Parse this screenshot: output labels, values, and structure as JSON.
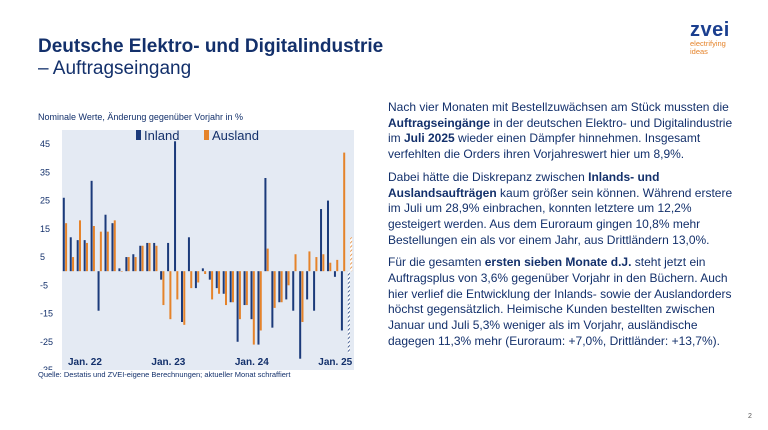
{
  "header": {
    "title": "Deutsche Elektro- und Digitalindustrie",
    "subtitle": "– Auftragseingang"
  },
  "logo": {
    "word": "zvei",
    "tagline_1": "electrifying",
    "tagline_2": "ideas"
  },
  "chart_note": "Nominale Werte, Änderung gegenüber Vorjahr in %",
  "source": "Quelle: Destatis und ZVEI-eigene Berechnungen; aktueller Monat schraffiert",
  "paragraphs": [
    [
      {
        "t": "Nach vier Monaten mit Bestellzuwächsen am Stück mussten die "
      },
      {
        "t": "Auftragseingänge",
        "b": true
      },
      {
        "t": " in der deutschen Elektro- und Digitalindustrie im "
      },
      {
        "t": "Juli 2025",
        "b": true
      },
      {
        "t": " wieder einen Dämpfer hinnehmen. Insgesamt verfehlten die Orders ihren Vorjahreswert hier um 8,9%."
      }
    ],
    [
      {
        "t": "Dabei hätte die Diskrepanz zwischen "
      },
      {
        "t": "Inlands- und Auslandsaufträgen",
        "b": true
      },
      {
        "t": " kaum größer sein können. Während erstere im Juli um 28,9% einbrachen, konnten letztere um 12,2% gesteigert werden. Aus dem Euroraum gingen 10,8% mehr Bestellungen ein als vor einem Jahr, aus Drittländern 13,0%."
      }
    ],
    [
      {
        "t": "Für die gesamten "
      },
      {
        "t": "ersten sieben Monate d.J.",
        "b": true
      },
      {
        "t": " steht jetzt ein Auftragsplus von 3,6% gegenüber Vorjahr in den Büchern. Auch hier verlief die Entwicklung der Inlands- sowie der Auslandorders höchst gegensätzlich. Heimische Kunden bestellten zwischen Januar und Juli 5,3% weniger als im Vorjahr, ausländische dagegen 11,3% mehr (Euroraum: +7,0%, Drittländer: +13,7%)."
      }
    ]
  ],
  "page_number": "2",
  "colors": {
    "inland": "#1b3a7a",
    "ausland": "#e5832a",
    "title": "#13306b",
    "plot_bg": "#e4eaf3"
  },
  "chart_data": {
    "type": "bar",
    "title": "",
    "xlabel": "",
    "ylabel": "",
    "ylim": [
      -35,
      50
    ],
    "yticks": [
      45,
      35,
      25,
      15,
      5,
      -5,
      -15,
      -25,
      -35
    ],
    "x_tick_labels": [
      {
        "label": "Jan. 22",
        "index": 0
      },
      {
        "label": "Jan. 23",
        "index": 12
      },
      {
        "label": "Jan. 24",
        "index": 24
      },
      {
        "label": "Jan. 25",
        "index": 36
      }
    ],
    "legend_position": "top",
    "hatched_last": true,
    "series": [
      {
        "name": "Inland",
        "values": [
          26,
          12,
          11,
          11,
          32,
          -14,
          20,
          17,
          1,
          5,
          6,
          9,
          10,
          10,
          -3,
          10,
          46,
          -18,
          12,
          -6,
          1,
          -3,
          -6,
          -8,
          -11,
          -25,
          -12,
          -17,
          -26,
          33,
          -20,
          -11,
          -10,
          -14,
          -31,
          -10,
          -14,
          22,
          25,
          -2,
          -21,
          -29
        ]
      },
      {
        "name": "Ausland",
        "values": [
          17,
          5,
          18,
          10,
          16,
          14,
          14,
          18,
          0,
          5,
          5,
          9,
          10,
          9,
          -12,
          -17,
          -10,
          -19,
          -6,
          -4,
          -1,
          -10,
          -8,
          -12,
          -11,
          -17,
          -12,
          -26,
          -21,
          8,
          -13,
          -11,
          -5,
          6,
          -18,
          7,
          5,
          6,
          3,
          4,
          42,
          12
        ]
      }
    ]
  }
}
